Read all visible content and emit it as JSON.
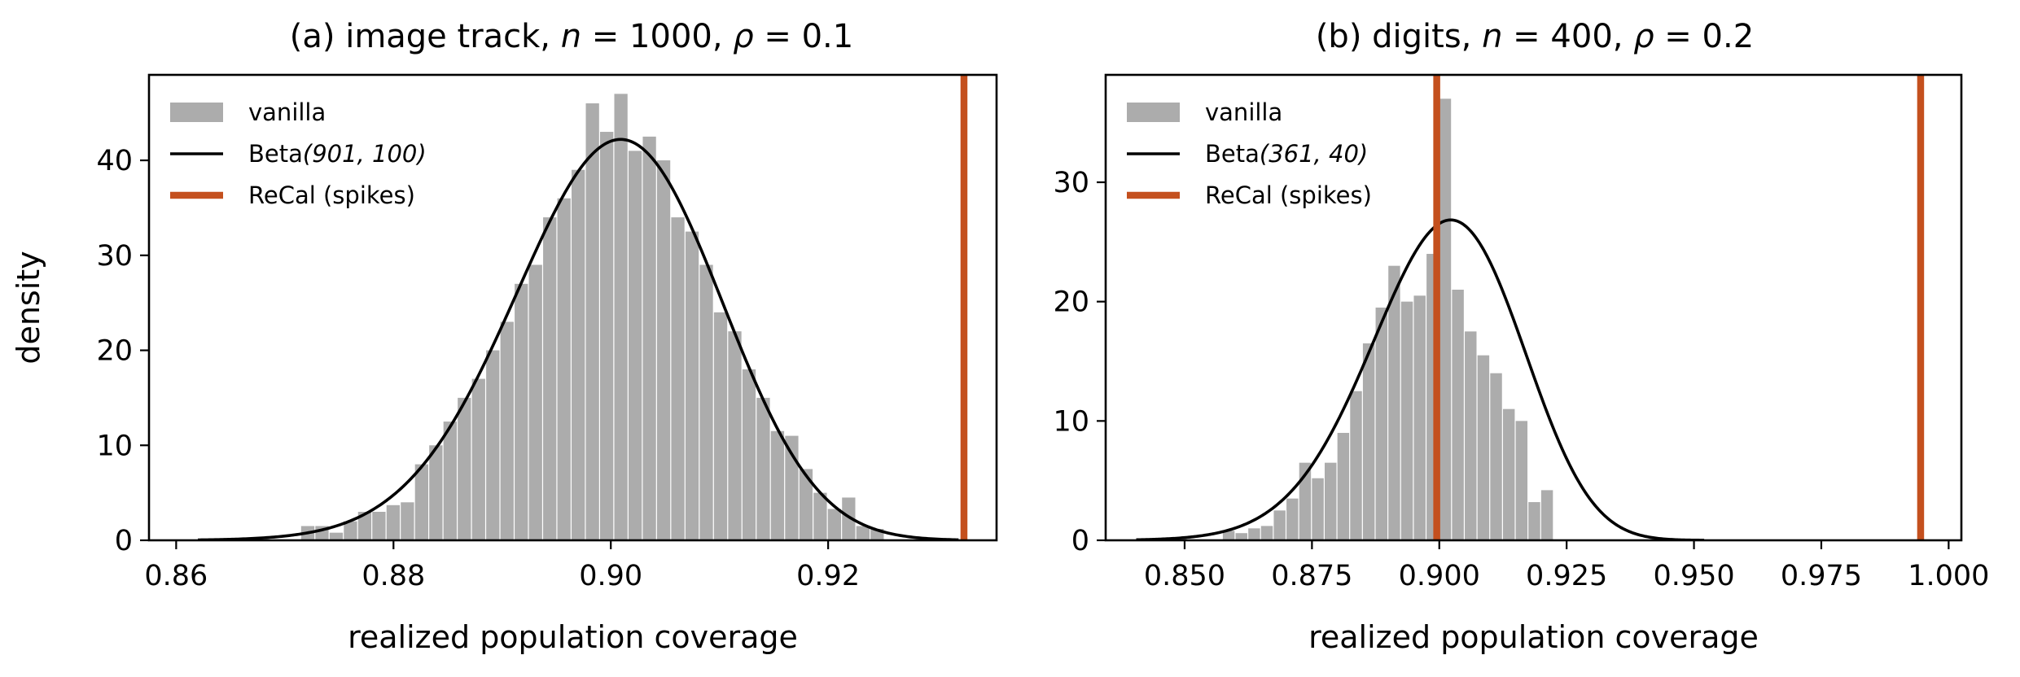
{
  "chart_data": [
    {
      "type": "bar",
      "title_prefix": "(a) image track, ",
      "title_math": [
        [
          "n",
          " = 1000, "
        ],
        [
          "ρ",
          " = 0.1"
        ]
      ],
      "xlabel": "realized population coverage",
      "ylabel": "density",
      "xlim": [
        0.8575,
        0.9355
      ],
      "ylim": [
        0,
        49
      ],
      "xticks": [
        "0.86",
        "0.88",
        "0.90",
        "0.92"
      ],
      "xtick_values": [
        0.86,
        0.88,
        0.9,
        0.92
      ],
      "yticks": [
        "0",
        "10",
        "20",
        "30",
        "40"
      ],
      "ytick_values": [
        0,
        10,
        20,
        30,
        40
      ],
      "legend_position": "upper-left",
      "series": [
        {
          "name": "vanilla",
          "kind": "histogram",
          "bin_start": 0.8715,
          "bin_width": 0.00131,
          "values": [
            1.5,
            1.5,
            0.8,
            2.0,
            3.0,
            3.0,
            3.7,
            4.0,
            8.0,
            10.0,
            12.5,
            15.0,
            17.0,
            20.0,
            23.0,
            27.0,
            29.0,
            34.0,
            36.0,
            39.0,
            46.0,
            43.0,
            47.0,
            41.0,
            42.5,
            40.0,
            34.0,
            32.5,
            29.0,
            24.0,
            22.0,
            18.0,
            15.0,
            11.5,
            11.0,
            7.5,
            5.0,
            3.3,
            4.5,
            1.5,
            1.2
          ]
        },
        {
          "name": "Beta(901, 100)",
          "name_prefix": "Beta",
          "name_args": "(901, 100)",
          "kind": "beta_pdf",
          "alpha": 901,
          "beta": 100,
          "x_range": [
            0.862,
            0.932
          ]
        },
        {
          "name": "ReCal (spikes)",
          "kind": "vline",
          "x": [
            0.9325
          ]
        }
      ]
    },
    {
      "type": "bar",
      "title_prefix": "(b) digits, ",
      "title_math": [
        [
          "n",
          " = 400, "
        ],
        [
          "ρ",
          " = 0.2"
        ]
      ],
      "xlabel": "realized population coverage",
      "ylabel": "",
      "xlim": [
        0.8345,
        1.0025
      ],
      "ylim": [
        0,
        39
      ],
      "xticks": [
        "0.850",
        "0.875",
        "0.900",
        "0.925",
        "0.950",
        "0.975",
        "1.000"
      ],
      "xtick_values": [
        0.85,
        0.875,
        0.9,
        0.925,
        0.95,
        0.975,
        1.0
      ],
      "yticks": [
        "0",
        "10",
        "20",
        "30"
      ],
      "ytick_values": [
        0,
        10,
        20,
        30
      ],
      "legend_position": "upper-left",
      "series": [
        {
          "name": "vanilla",
          "kind": "histogram",
          "bin_start": 0.8575,
          "bin_width": 0.0025,
          "values": [
            0.8,
            0.6,
            1.0,
            1.2,
            2.5,
            3.5,
            6.5,
            5.2,
            6.5,
            9.0,
            12.5,
            16.5,
            19.5,
            23.0,
            20.0,
            20.5,
            24.0,
            37.0,
            21.0,
            17.5,
            15.5,
            14.0,
            11.0,
            10.0,
            3.2,
            4.2
          ]
        },
        {
          "name": "Beta(361, 40)",
          "name_prefix": "Beta",
          "name_args": "(361, 40)",
          "kind": "beta_pdf",
          "alpha": 361,
          "beta": 40,
          "x_range": [
            0.8405,
            0.952
          ]
        },
        {
          "name": "ReCal (spikes)",
          "kind": "vline",
          "x": [
            0.8995,
            0.9945
          ]
        }
      ]
    }
  ],
  "colors": {
    "histogram": "#acacac",
    "curve": "#000000",
    "spike": "#c4501e",
    "axes": "#000000"
  }
}
